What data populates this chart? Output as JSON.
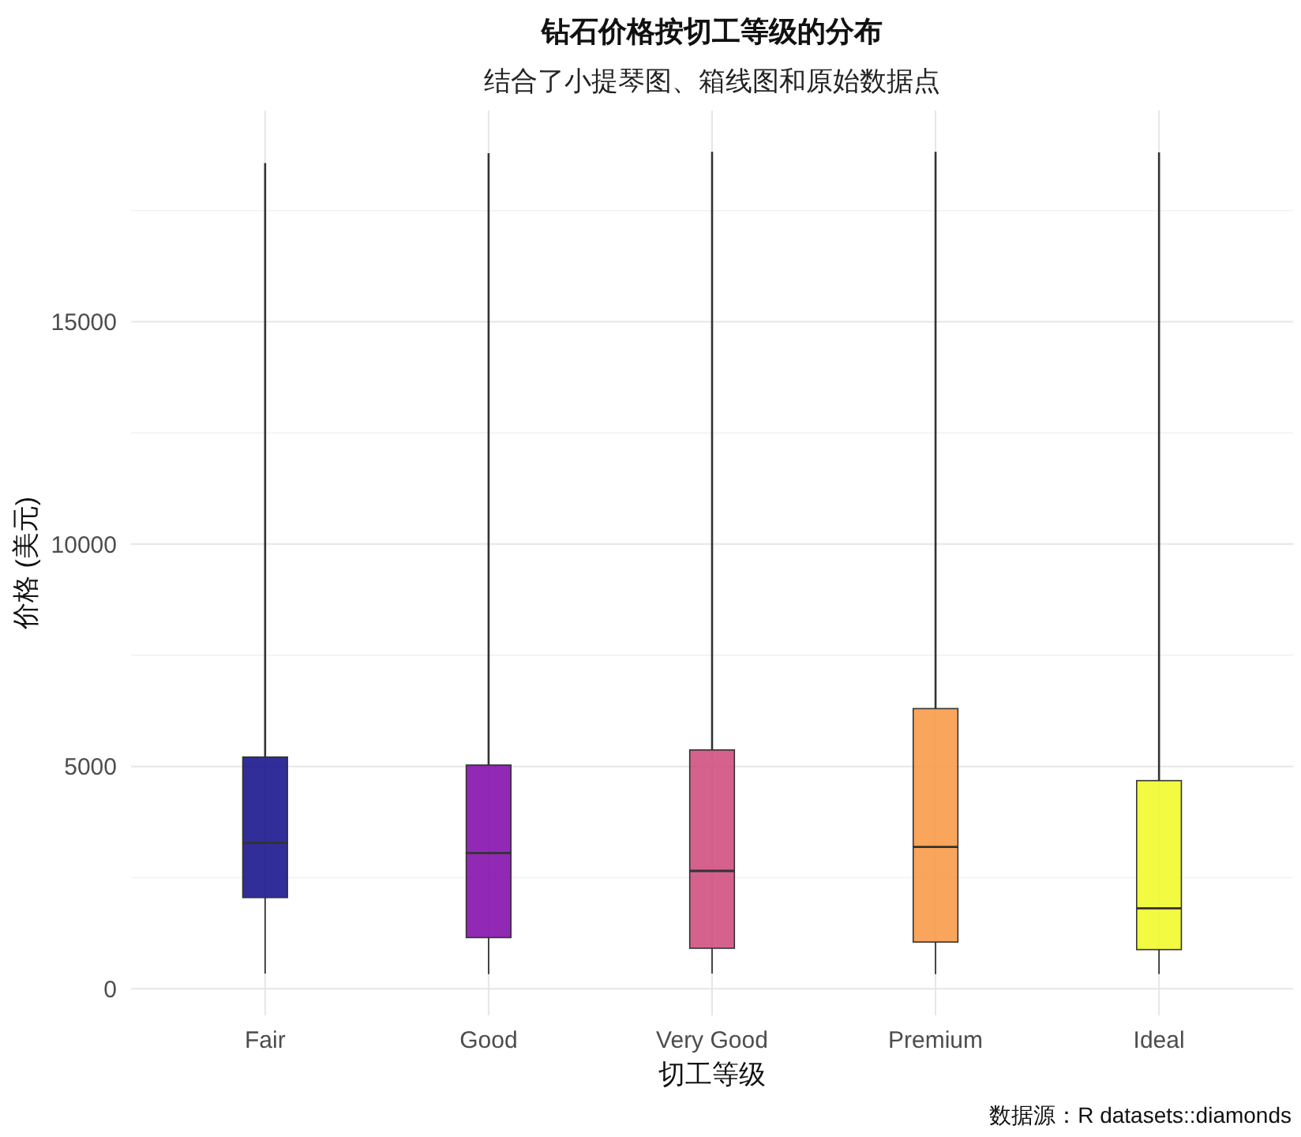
{
  "chart_data": {
    "type": "box",
    "title": "钻石价格按切工等级的分布",
    "subtitle": "结合了小提琴图、箱线图和原始数据点",
    "xlabel": "切工等级",
    "ylabel": "价格 (美元)",
    "annotations": [
      "数据源：R datasets::diamonds"
    ],
    "categories": [
      "Fair",
      "Good",
      "Very Good",
      "Premium",
      "Ideal"
    ],
    "colors": [
      "#0d0887",
      "#7e03a8",
      "#cc4778",
      "#f89540",
      "#f0f921"
    ],
    "boxes": [
      {
        "low": 340,
        "q1": 2050,
        "median": 3280,
        "q3": 5210,
        "high": 18570
      },
      {
        "low": 330,
        "q1": 1150,
        "median": 3050,
        "q3": 5030,
        "high": 18790
      },
      {
        "low": 340,
        "q1": 910,
        "median": 2650,
        "q3": 5370,
        "high": 18820
      },
      {
        "low": 330,
        "q1": 1050,
        "median": 3190,
        "q3": 6300,
        "high": 18820
      },
      {
        "low": 330,
        "q1": 880,
        "median": 1810,
        "q3": 4680,
        "high": 18810
      }
    ],
    "ylim": [
      -600,
      19750
    ],
    "yticks": [
      0,
      {
        "value": 2500,
        "label": null
      },
      5000,
      {
        "value": 7500,
        "label": null
      },
      10000,
      {
        "value": 12500,
        "label": null
      },
      15000,
      {
        "value": 17500,
        "label": null
      }
    ],
    "grid": true
  }
}
